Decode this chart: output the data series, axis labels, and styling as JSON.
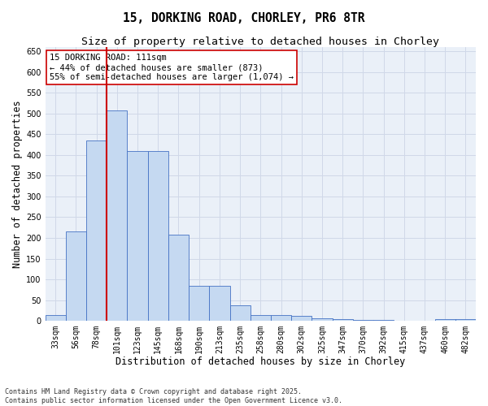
{
  "title": "15, DORKING ROAD, CHORLEY, PR6 8TR",
  "subtitle": "Size of property relative to detached houses in Chorley",
  "xlabel": "Distribution of detached houses by size in Chorley",
  "ylabel": "Number of detached properties",
  "categories": [
    "33sqm",
    "56sqm",
    "78sqm",
    "101sqm",
    "123sqm",
    "145sqm",
    "168sqm",
    "190sqm",
    "213sqm",
    "235sqm",
    "258sqm",
    "280sqm",
    "302sqm",
    "325sqm",
    "347sqm",
    "370sqm",
    "392sqm",
    "415sqm",
    "437sqm",
    "460sqm",
    "482sqm"
  ],
  "values": [
    15,
    215,
    435,
    508,
    410,
    410,
    207,
    85,
    85,
    37,
    15,
    15,
    12,
    6,
    5,
    3,
    2,
    1,
    1,
    4,
    4
  ],
  "bar_color": "#c5d9f1",
  "bar_edge_color": "#4472c4",
  "property_line_idx": 3,
  "property_line_color": "#cc0000",
  "annotation_text": "15 DORKING ROAD: 111sqm\n← 44% of detached houses are smaller (873)\n55% of semi-detached houses are larger (1,074) →",
  "annotation_box_color": "#ffffff",
  "annotation_box_edge": "#cc0000",
  "ylim": [
    0,
    660
  ],
  "yticks": [
    0,
    50,
    100,
    150,
    200,
    250,
    300,
    350,
    400,
    450,
    500,
    550,
    600,
    650
  ],
  "grid_color": "#d0d8e8",
  "background_color": "#eaf0f8",
  "footer_text": "Contains HM Land Registry data © Crown copyright and database right 2025.\nContains public sector information licensed under the Open Government Licence v3.0.",
  "title_fontsize": 10.5,
  "subtitle_fontsize": 9.5,
  "axis_label_fontsize": 8.5,
  "tick_fontsize": 7,
  "annotation_fontsize": 7.5,
  "footer_fontsize": 6
}
